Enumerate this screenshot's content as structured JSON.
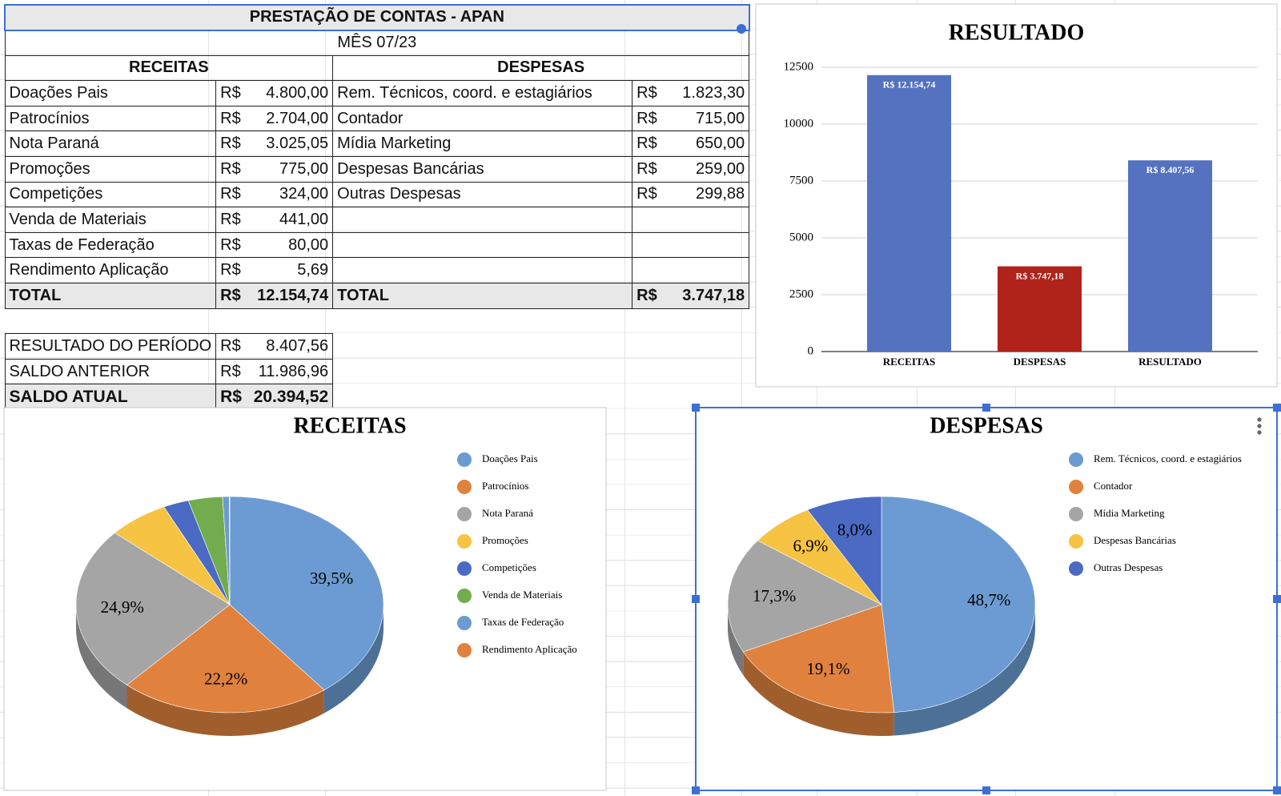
{
  "table": {
    "title": "PRESTAÇÃO DE CONTAS - APAN",
    "subtitle": "MÊS 07/23",
    "receitas": {
      "header": "RECEITAS",
      "rows": [
        [
          "Doações Pais",
          "R$",
          "4.800,00"
        ],
        [
          "Patrocínios",
          "R$",
          "2.704,00"
        ],
        [
          "Nota Paraná",
          "R$",
          "3.025,05"
        ],
        [
          "Promoções",
          "R$",
          "775,00"
        ],
        [
          "Competições",
          "R$",
          "324,00"
        ],
        [
          "Venda de Materiais",
          "R$",
          "441,00"
        ],
        [
          "Taxas de Federação",
          "R$",
          "80,00"
        ],
        [
          "Rendimento Aplicação",
          "R$",
          "5,69"
        ]
      ],
      "total": [
        "TOTAL",
        "R$",
        "12.154,74"
      ]
    },
    "despesas": {
      "header": "DESPESAS",
      "rows": [
        [
          "Rem. Técnicos, coord. e estagiários",
          "R$",
          "1.823,30"
        ],
        [
          "Contador",
          "R$",
          "715,00"
        ],
        [
          "Mídia Marketing",
          "R$",
          "650,00"
        ],
        [
          "Despesas Bancárias",
          "R$",
          "259,00"
        ],
        [
          "Outras Despesas",
          "R$",
          "299,88"
        ]
      ],
      "total": [
        "TOTAL",
        "R$",
        "3.747,18"
      ]
    },
    "summary": [
      [
        "RESULTADO DO PERÍODO",
        "R$",
        "8.407,56"
      ],
      [
        "SALDO ANTERIOR",
        "R$",
        "11.986,96"
      ],
      [
        "SALDO ATUAL",
        "R$",
        "20.394,52"
      ]
    ]
  },
  "chart_data": [
    {
      "type": "bar",
      "title": "RESULTADO",
      "categories": [
        "RECEITAS",
        "DESPESAS",
        "RESULTADO"
      ],
      "values": [
        12154.74,
        3747.18,
        8407.56
      ],
      "value_labels": [
        "R$  12.154,74",
        "R$  3.747,18",
        "R$  8.407,56"
      ],
      "colors": [
        "#5472c0",
        "#b0231a",
        "#5472c0"
      ],
      "ylim": [
        0,
        12500
      ],
      "yticks": [
        0,
        2500,
        5000,
        7500,
        10000,
        12500
      ],
      "grid": true
    },
    {
      "type": "pie",
      "title": "RECEITAS",
      "categories": [
        "Doações Pais",
        "Patrocínios",
        "Nota Paraná",
        "Promoções",
        "Competições",
        "Venda de Materiais",
        "Taxas de Federação",
        "Rendimento Aplicação"
      ],
      "values": [
        39.5,
        22.2,
        24.9,
        6.4,
        2.7,
        3.6,
        0.7,
        0.05
      ],
      "value_labels": [
        "39,5%",
        "22,2%",
        "24,9%",
        null,
        null,
        null,
        null,
        null
      ],
      "colors": [
        "#6b9bd2",
        "#e0823e",
        "#a5a5a5",
        "#f6c342",
        "#4a6ac4",
        "#72ac4e",
        "#6b9bd2",
        "#e0823e"
      ],
      "legend": "right"
    },
    {
      "type": "pie",
      "title": "DESPESAS",
      "categories": [
        "Rem. Técnicos, coord. e estagiários",
        "Contador",
        "Mídia Marketing",
        "Despesas Bancárias",
        "Outras Despesas"
      ],
      "values": [
        48.7,
        19.1,
        17.3,
        6.9,
        8.0
      ],
      "value_labels": [
        "48,7%",
        "19,1%",
        "17,3%",
        "6,9%",
        "8,0%"
      ],
      "colors": [
        "#6b9bd2",
        "#e0823e",
        "#a5a5a5",
        "#f6c342",
        "#4a6ac4"
      ],
      "legend": "right"
    }
  ]
}
